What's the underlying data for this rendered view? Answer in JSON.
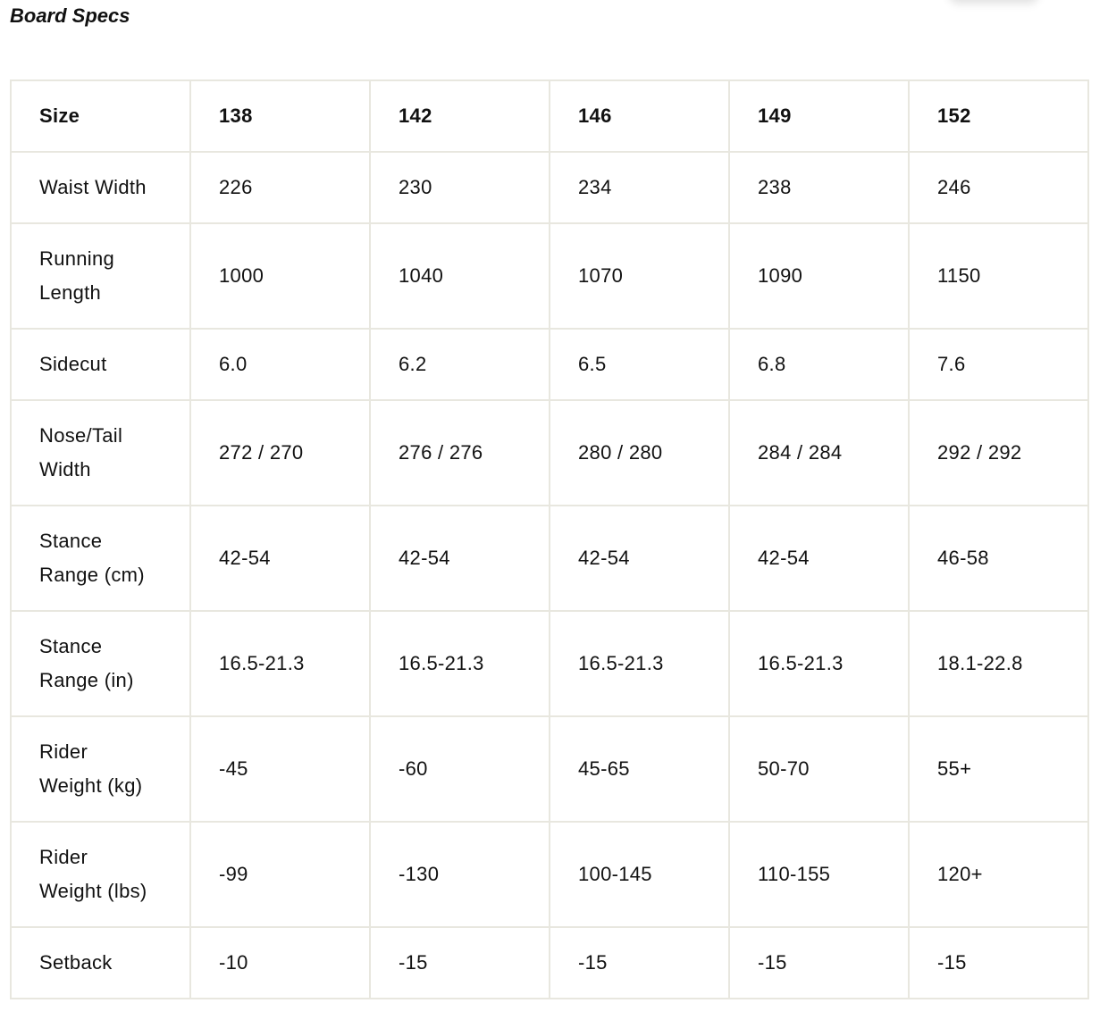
{
  "title": "Board Specs",
  "table": {
    "header": [
      "Size",
      "138",
      "142",
      "146",
      "149",
      "152"
    ],
    "rows": [
      [
        "Waist Width",
        "226",
        "230",
        "234",
        "238",
        "246"
      ],
      [
        "Running Length",
        "1000",
        "1040",
        "1070",
        "1090",
        "1150"
      ],
      [
        "Sidecut",
        "6.0",
        "6.2",
        "6.5",
        "6.8",
        "7.6"
      ],
      [
        "Nose/Tail Width",
        "272 / 270",
        "276 / 276",
        "280 / 280",
        "284 / 284",
        "292 / 292"
      ],
      [
        "Stance Range (cm)",
        "42-54",
        "42-54",
        "42-54",
        "42-54",
        "46-58"
      ],
      [
        "Stance Range (in)",
        "16.5-21.3",
        "16.5-21.3",
        "16.5-21.3",
        "16.5-21.3",
        "18.1-22.8"
      ],
      [
        "Rider Weight (kg)",
        "-45",
        "-60",
        "45-65",
        "50-70",
        "55+"
      ],
      [
        "Rider Weight (lbs)",
        "-99",
        "-130",
        "100-145",
        "110-155",
        "120+"
      ],
      [
        "Setback",
        "-10",
        "-15",
        "-15",
        "-15",
        "-15"
      ]
    ]
  }
}
